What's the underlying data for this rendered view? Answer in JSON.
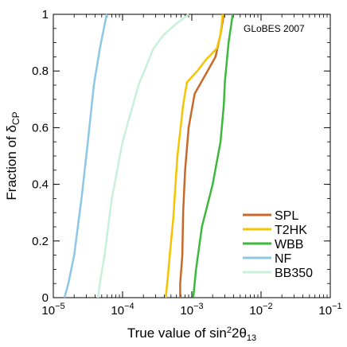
{
  "chart_data": {
    "type": "line",
    "xlabel": "True value of sin",
    "xlabel_sup": "2",
    "xlabel_rest": "2θ",
    "xlabel_sub": "13",
    "ylabel": "Fraction of δ",
    "ylabel_sub": "CP",
    "annotation": "GLoBES 2007",
    "x_scale": "log",
    "xlim": [
      1e-05,
      0.1
    ],
    "ylim": [
      0,
      1
    ],
    "x_ticks": [
      {
        "value": 1e-05,
        "base": "10",
        "exp": "−5"
      },
      {
        "value": 0.0001,
        "base": "10",
        "exp": "−4"
      },
      {
        "value": 0.001,
        "base": "10",
        "exp": "−3"
      },
      {
        "value": 0.01,
        "base": "10",
        "exp": "−2"
      },
      {
        "value": 0.1,
        "base": "10",
        "exp": "−1"
      }
    ],
    "y_ticks": [
      {
        "value": 0,
        "label": "0"
      },
      {
        "value": 0.2,
        "label": "0.2"
      },
      {
        "value": 0.4,
        "label": "0.4"
      },
      {
        "value": 0.6,
        "label": "0.6"
      },
      {
        "value": 0.8,
        "label": "0.8"
      },
      {
        "value": 1,
        "label": "1"
      }
    ],
    "legend_position": "bottom-right",
    "series": [
      {
        "name": "SPL",
        "color": "#c8692a",
        "points": [
          [
            0.00068,
            0
          ],
          [
            0.00068,
            0.05
          ],
          [
            0.00073,
            0.15
          ],
          [
            0.00075,
            0.3
          ],
          [
            0.0008,
            0.45
          ],
          [
            0.0009,
            0.6
          ],
          [
            0.0011,
            0.72
          ],
          [
            0.0016,
            0.79
          ],
          [
            0.0022,
            0.85
          ],
          [
            0.0026,
            0.93
          ],
          [
            0.0029,
            1.0
          ]
        ]
      },
      {
        "name": "T2HK",
        "color": "#f5c400",
        "points": [
          [
            0.00042,
            0
          ],
          [
            0.00045,
            0.07
          ],
          [
            0.00048,
            0.15
          ],
          [
            0.00054,
            0.28
          ],
          [
            0.00062,
            0.5
          ],
          [
            0.00075,
            0.68
          ],
          [
            0.00085,
            0.76
          ],
          [
            0.0012,
            0.8
          ],
          [
            0.0016,
            0.84
          ],
          [
            0.0023,
            0.88
          ],
          [
            0.0026,
            0.93
          ],
          [
            0.0028,
            1.0
          ]
        ]
      },
      {
        "name": "WBB",
        "color": "#3cb93c",
        "points": [
          [
            0.00105,
            0
          ],
          [
            0.00115,
            0.1
          ],
          [
            0.0014,
            0.25
          ],
          [
            0.002,
            0.4
          ],
          [
            0.0026,
            0.55
          ],
          [
            0.0029,
            0.68
          ],
          [
            0.003,
            0.76
          ],
          [
            0.0034,
            0.9
          ],
          [
            0.0039,
            1.0
          ]
        ]
      },
      {
        "name": "NF",
        "color": "#8ec7e6",
        "points": [
          [
            1.45e-05,
            0
          ],
          [
            1.65e-05,
            0.05
          ],
          [
            2e-05,
            0.15
          ],
          [
            2.55e-05,
            0.35
          ],
          [
            3.15e-05,
            0.55
          ],
          [
            3.85e-05,
            0.75
          ],
          [
            4.7e-05,
            0.88
          ],
          [
            5.9e-05,
            1.0
          ]
        ]
      },
      {
        "name": "BB350",
        "color": "#c9f0d8",
        "points": [
          [
            4.4e-05,
            0
          ],
          [
            4.7e-05,
            0.05
          ],
          [
            5.5e-05,
            0.15
          ],
          [
            7e-05,
            0.35
          ],
          [
            0.0001,
            0.55
          ],
          [
            0.00017,
            0.75
          ],
          [
            0.00028,
            0.88
          ],
          [
            0.0004,
            0.93
          ],
          [
            0.00062,
            0.97
          ],
          [
            0.0009,
            1.0
          ]
        ]
      }
    ]
  }
}
